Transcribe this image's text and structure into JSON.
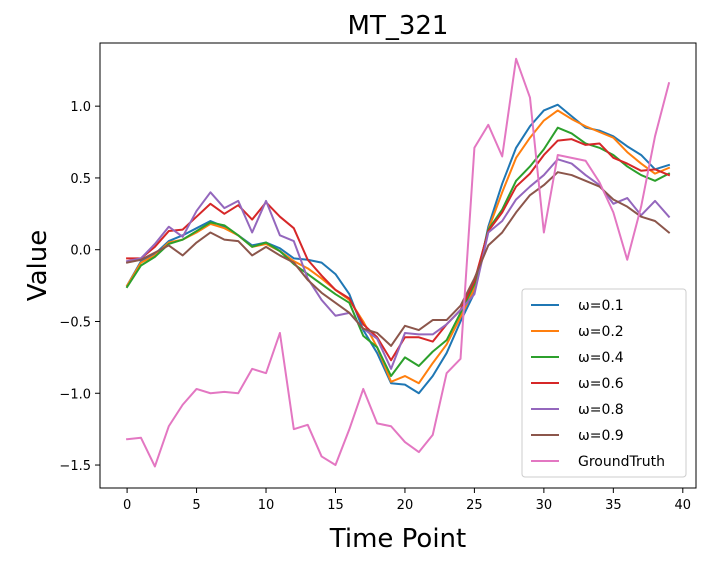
{
  "chart_data": {
    "type": "line",
    "title": "MT_321",
    "xlabel": "Time Point",
    "ylabel": "Value",
    "xlim": [
      -1.95,
      40.95
    ],
    "ylim": [
      -1.66,
      1.44
    ],
    "xticks": [
      0,
      5,
      10,
      15,
      20,
      25,
      30,
      35,
      40
    ],
    "yticks": [
      -1.5,
      -1.0,
      -0.5,
      0.0,
      0.5,
      1.0
    ],
    "ytick_labels": [
      "−1.5",
      "−1.0",
      "−0.5",
      "0.0",
      "0.5",
      "1.0"
    ],
    "grid": false,
    "legend_position": "lower-right",
    "x": [
      0,
      1,
      2,
      3,
      4,
      5,
      6,
      7,
      8,
      9,
      10,
      11,
      12,
      13,
      14,
      15,
      16,
      17,
      18,
      19,
      20,
      21,
      22,
      23,
      24,
      25,
      26,
      27,
      28,
      29,
      30,
      31,
      32,
      33,
      34,
      35,
      36,
      37,
      38,
      39
    ],
    "series": [
      {
        "name": "ω=0.1",
        "color": "#1f77b4",
        "values": [
          -0.25,
          -0.08,
          -0.03,
          0.06,
          0.1,
          0.15,
          0.2,
          0.16,
          0.1,
          0.03,
          0.05,
          0.01,
          -0.06,
          -0.07,
          -0.09,
          -0.17,
          -0.31,
          -0.56,
          -0.72,
          -0.93,
          -0.94,
          -1.0,
          -0.88,
          -0.72,
          -0.5,
          -0.3,
          0.16,
          0.46,
          0.71,
          0.86,
          0.97,
          1.01,
          0.93,
          0.85,
          0.83,
          0.79,
          0.72,
          0.66,
          0.56,
          0.59
        ]
      },
      {
        "name": "ω=0.2",
        "color": "#ff7f0e",
        "values": [
          -0.25,
          -0.09,
          -0.04,
          0.05,
          0.07,
          0.12,
          0.18,
          0.15,
          0.1,
          0.02,
          0.04,
          -0.01,
          -0.08,
          -0.13,
          -0.2,
          -0.28,
          -0.35,
          -0.5,
          -0.68,
          -0.92,
          -0.88,
          -0.93,
          -0.79,
          -0.66,
          -0.47,
          -0.27,
          0.14,
          0.4,
          0.64,
          0.78,
          0.9,
          0.97,
          0.91,
          0.86,
          0.82,
          0.78,
          0.68,
          0.6,
          0.53,
          0.57
        ]
      },
      {
        "name": "ω=0.4",
        "color": "#2ca02c",
        "values": [
          -0.26,
          -0.11,
          -0.05,
          0.04,
          0.07,
          0.13,
          0.19,
          0.17,
          0.1,
          0.02,
          0.05,
          -0.01,
          -0.1,
          -0.17,
          -0.24,
          -0.31,
          -0.37,
          -0.6,
          -0.68,
          -0.88,
          -0.75,
          -0.81,
          -0.71,
          -0.63,
          -0.44,
          -0.24,
          0.14,
          0.28,
          0.48,
          0.58,
          0.7,
          0.85,
          0.81,
          0.74,
          0.71,
          0.66,
          0.58,
          0.52,
          0.48,
          0.53
        ]
      },
      {
        "name": "ω=0.6",
        "color": "#d62728",
        "values": [
          -0.06,
          -0.06,
          0.02,
          0.13,
          0.14,
          0.23,
          0.32,
          0.25,
          0.31,
          0.21,
          0.33,
          0.23,
          0.15,
          -0.07,
          -0.18,
          -0.28,
          -0.34,
          -0.52,
          -0.61,
          -0.77,
          -0.61,
          -0.61,
          -0.64,
          -0.52,
          -0.42,
          -0.22,
          0.13,
          0.26,
          0.44,
          0.53,
          0.66,
          0.76,
          0.77,
          0.73,
          0.74,
          0.64,
          0.6,
          0.55,
          0.56,
          0.52
        ]
      },
      {
        "name": "ω=0.8",
        "color": "#9467bd",
        "values": [
          -0.08,
          -0.06,
          0.04,
          0.16,
          0.09,
          0.27,
          0.4,
          0.29,
          0.34,
          0.12,
          0.34,
          0.1,
          0.06,
          -0.2,
          -0.35,
          -0.46,
          -0.44,
          -0.55,
          -0.62,
          -0.83,
          -0.58,
          -0.59,
          -0.59,
          -0.52,
          -0.42,
          -0.31,
          0.12,
          0.2,
          0.35,
          0.44,
          0.52,
          0.63,
          0.6,
          0.52,
          0.45,
          0.32,
          0.36,
          0.24,
          0.34,
          0.23
        ]
      },
      {
        "name": "ω=0.9",
        "color": "#8c564b",
        "values": [
          -0.09,
          -0.07,
          -0.02,
          0.03,
          -0.04,
          0.05,
          0.12,
          0.07,
          0.06,
          -0.04,
          0.02,
          -0.04,
          -0.09,
          -0.21,
          -0.3,
          -0.37,
          -0.44,
          -0.55,
          -0.58,
          -0.67,
          -0.53,
          -0.56,
          -0.49,
          -0.49,
          -0.39,
          -0.2,
          0.03,
          0.12,
          0.26,
          0.38,
          0.45,
          0.54,
          0.52,
          0.48,
          0.44,
          0.35,
          0.3,
          0.23,
          0.2,
          0.12
        ]
      },
      {
        "name": "GroundTruth",
        "color": "#e377c2",
        "values": [
          -1.32,
          -1.31,
          -1.51,
          -1.23,
          -1.08,
          -0.97,
          -1.0,
          -0.99,
          -1.0,
          -0.83,
          -0.86,
          -0.58,
          -1.25,
          -1.22,
          -1.44,
          -1.5,
          -1.25,
          -0.97,
          -1.21,
          -1.23,
          -1.34,
          -1.41,
          -1.29,
          -0.86,
          -0.76,
          0.71,
          0.87,
          0.65,
          1.33,
          1.06,
          0.12,
          0.66,
          0.64,
          0.62,
          0.47,
          0.26,
          -0.07,
          0.3,
          0.79,
          1.16
        ]
      }
    ]
  }
}
